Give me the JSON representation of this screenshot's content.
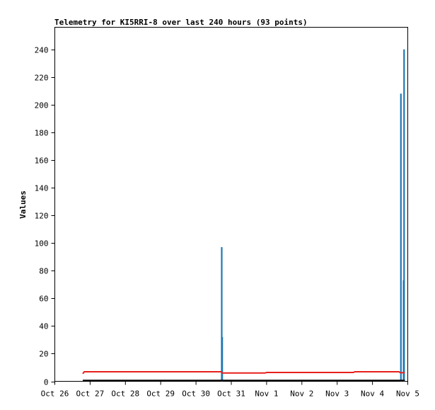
{
  "chart_data": {
    "type": "line",
    "title": "Telemetry for KI5RRI-8 over last 240 hours (93 points)",
    "ylabel": "Values",
    "xlabel": "",
    "ylim": [
      0,
      256
    ],
    "y_ticks": [
      0,
      20,
      40,
      60,
      80,
      100,
      120,
      140,
      160,
      180,
      200,
      220,
      240
    ],
    "xlim": [
      "2024-10-26",
      "2024-11-05"
    ],
    "x_ticks": [
      "Oct 26",
      "Oct 27",
      "Oct 28",
      "Oct 29",
      "Oct 30",
      "Oct 31",
      "Nov 1",
      "Nov 2",
      "Nov 3",
      "Nov 4",
      "Nov 5"
    ],
    "series": [
      {
        "color": "#1f77b4",
        "style": "impulse",
        "points": [
          {
            "x": "2024-10-30T17:30",
            "y": 97
          },
          {
            "x": "2024-10-30T17:50",
            "y": 32
          },
          {
            "x": "2024-11-04T19:20",
            "y": 208
          },
          {
            "x": "2024-11-04T21:10",
            "y": 73
          },
          {
            "x": "2024-11-04T21:30",
            "y": 240
          }
        ]
      },
      {
        "color": "#e8201c",
        "style": "line",
        "points": [
          {
            "x": "2024-10-26T19:00",
            "y": 5.5
          },
          {
            "x": "2024-10-26T20:00",
            "y": 6.9
          },
          {
            "x": "2024-10-30T17:00",
            "y": 6.9
          },
          {
            "x": "2024-10-30T18:00",
            "y": 6.0
          },
          {
            "x": "2024-10-31T23:00",
            "y": 6.0
          },
          {
            "x": "2024-11-01T00:00",
            "y": 6.4
          },
          {
            "x": "2024-11-03T11:00",
            "y": 6.4
          },
          {
            "x": "2024-11-03T12:00",
            "y": 6.9
          },
          {
            "x": "2024-11-04T18:00",
            "y": 6.9
          },
          {
            "x": "2024-11-04T19:00",
            "y": 6.2
          },
          {
            "x": "2024-11-04T22:00",
            "y": 6.2
          }
        ]
      },
      {
        "color": "#000000",
        "style": "line",
        "points": [
          {
            "x": "2024-10-26T19:00",
            "y": 0.6
          },
          {
            "x": "2024-11-04T22:00",
            "y": 0.6
          }
        ]
      }
    ],
    "grid": false,
    "legend": "none"
  }
}
